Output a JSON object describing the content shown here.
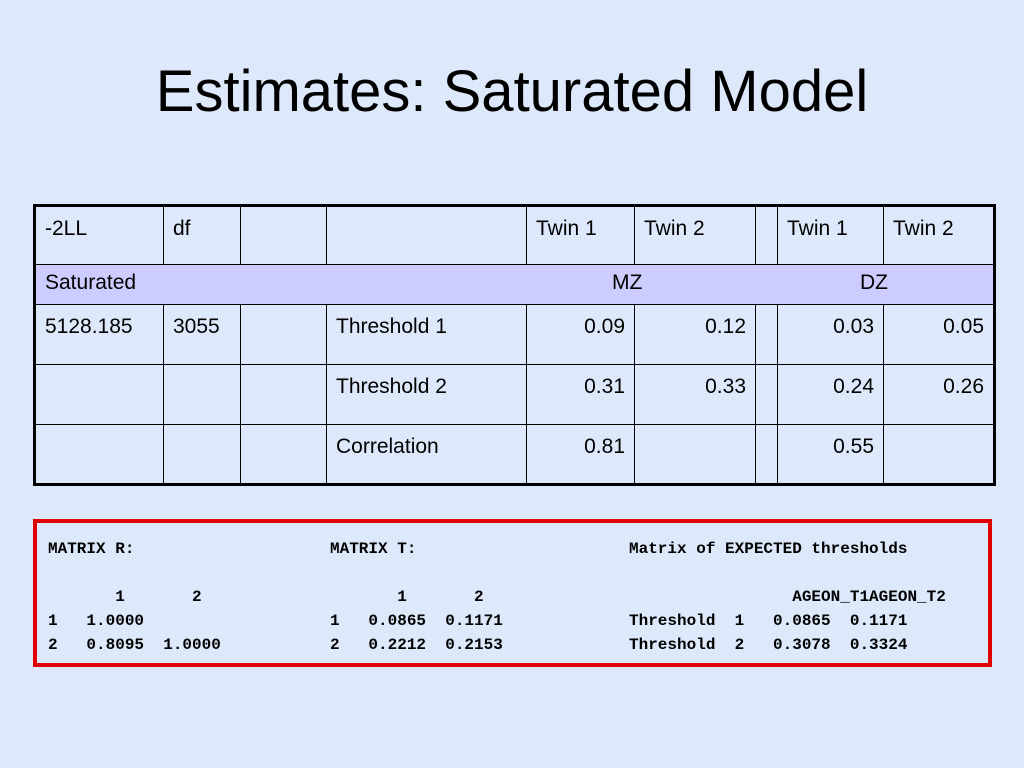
{
  "title": "Estimates: Saturated Model",
  "table": {
    "header": [
      "-2LL",
      "df",
      "",
      "",
      "Twin 1",
      "Twin 2",
      "",
      "Twin 1",
      "Twin 2"
    ],
    "band": {
      "label": "Saturated",
      "mz": "MZ",
      "dz": "DZ"
    },
    "rows": [
      [
        "5128.185",
        "3055",
        "",
        "Threshold 1",
        "0.09",
        "0.12",
        "",
        "0.03",
        "0.05"
      ],
      [
        "",
        "",
        "",
        "Threshold 2",
        "0.31",
        "0.33",
        "",
        "0.24",
        "0.26"
      ],
      [
        "",
        "",
        "",
        "Correlation",
        "0.81",
        "",
        "",
        "0.55",
        ""
      ]
    ]
  },
  "matrix": {
    "r": "MATRIX R:\n\n       1       2\n1   1.0000\n2   0.8095  1.0000",
    "t": "MATRIX T:\n\n       1       2\n1   0.0865  0.1171\n2   0.2212  0.2153",
    "e": "Matrix of EXPECTED thresholds\n\n                 AGEON_T1AGEON_T2\nThreshold  1   0.0865  0.1171\nThreshold  2   0.3078  0.3324"
  }
}
